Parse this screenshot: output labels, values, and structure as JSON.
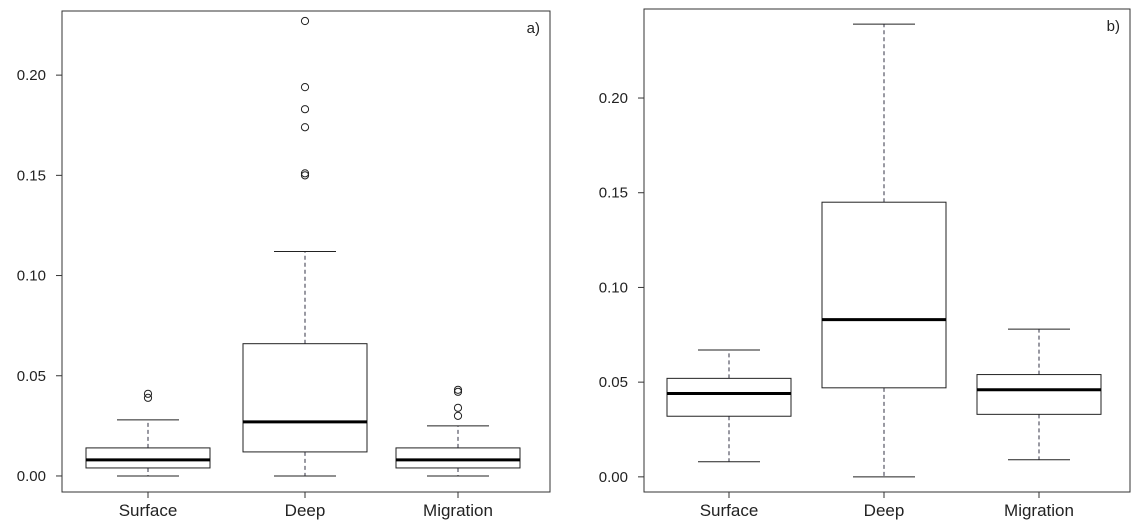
{
  "chart_data": [
    {
      "type": "boxplot",
      "panel_label": "a)",
      "categories": [
        "Surface",
        "Deep",
        "Migration"
      ],
      "ylim": [
        -0.008,
        0.232
      ],
      "yticks": [
        0.0,
        0.05,
        0.1,
        0.15,
        0.2
      ],
      "ytick_labels": [
        "0.00",
        "0.05",
        "0.10",
        "0.15",
        "0.20"
      ],
      "grid": false,
      "boxes": [
        {
          "category": "Surface",
          "whisker_low": 0.0,
          "q1": 0.004,
          "median": 0.008,
          "q3": 0.014,
          "whisker_high": 0.028,
          "outliers": [
            0.039,
            0.041
          ]
        },
        {
          "category": "Deep",
          "whisker_low": 0.0,
          "q1": 0.012,
          "median": 0.027,
          "q3": 0.066,
          "whisker_high": 0.112,
          "outliers": [
            0.15,
            0.151,
            0.174,
            0.183,
            0.194,
            0.227
          ]
        },
        {
          "category": "Migration",
          "whisker_low": 0.0,
          "q1": 0.004,
          "median": 0.008,
          "q3": 0.014,
          "whisker_high": 0.025,
          "outliers": [
            0.03,
            0.034,
            0.042,
            0.043
          ]
        }
      ]
    },
    {
      "type": "boxplot",
      "panel_label": "b)",
      "categories": [
        "Surface",
        "Deep",
        "Migration"
      ],
      "ylim": [
        -0.008,
        0.247
      ],
      "yticks": [
        0.0,
        0.05,
        0.1,
        0.15,
        0.2
      ],
      "ytick_labels": [
        "0.00",
        "0.05",
        "0.10",
        "0.15",
        "0.20"
      ],
      "grid": false,
      "boxes": [
        {
          "category": "Surface",
          "whisker_low": 0.008,
          "q1": 0.032,
          "median": 0.044,
          "q3": 0.052,
          "whisker_high": 0.067,
          "outliers": []
        },
        {
          "category": "Deep",
          "whisker_low": 0.0,
          "q1": 0.047,
          "median": 0.083,
          "q3": 0.145,
          "whisker_high": 0.239,
          "outliers": []
        },
        {
          "category": "Migration",
          "whisker_low": 0.009,
          "q1": 0.033,
          "median": 0.046,
          "q3": 0.054,
          "whisker_high": 0.078,
          "outliers": []
        }
      ]
    }
  ]
}
